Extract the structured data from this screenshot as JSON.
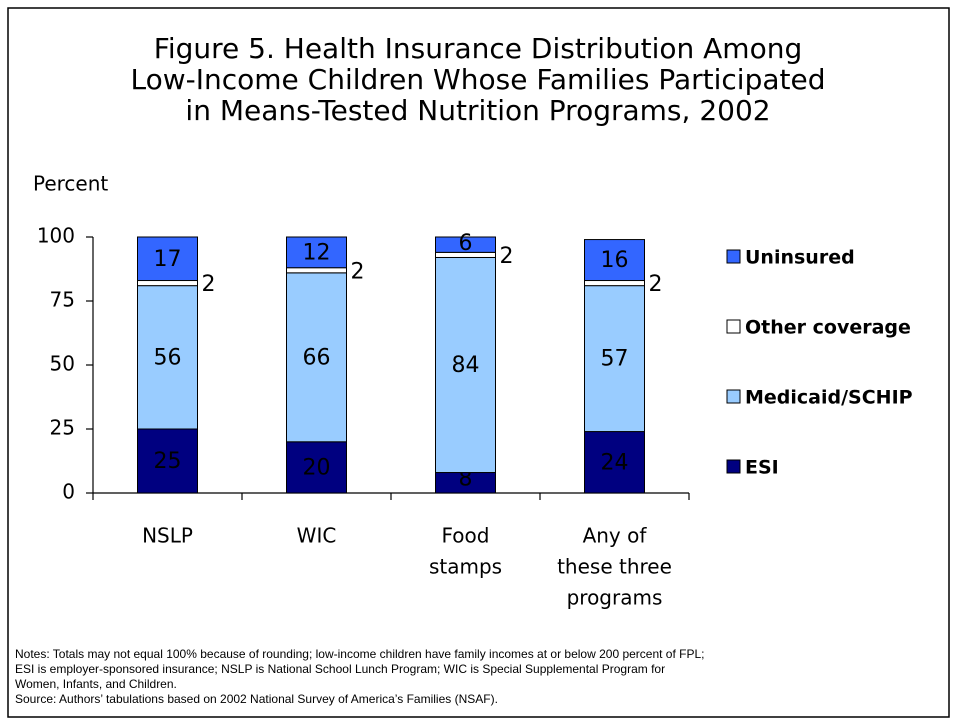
{
  "chart_data": {
    "type": "stacked_bar",
    "title": [
      "Figure 5. Health Insurance Distribution Among",
      "Low-Income Children Whose Families Participated",
      "in Means-Tested Nutrition Programs, 2002"
    ],
    "ylabel": "Percent",
    "categories": [
      [
        "NSLP"
      ],
      [
        "WIC"
      ],
      [
        "Food",
        "stamps"
      ],
      [
        "Any of",
        "these three",
        "programs"
      ]
    ],
    "series": [
      {
        "name": "ESI",
        "color": "#000080",
        "values": [
          25,
          20,
          8,
          24
        ]
      },
      {
        "name": "Medicaid/SCHIP",
        "color": "#99ccff",
        "values": [
          56,
          66,
          84,
          57
        ]
      },
      {
        "name": "Other coverage",
        "color": "#ffffff",
        "values": [
          2,
          2,
          2,
          2
        ]
      },
      {
        "name": "Uninsured",
        "color": "#3366ff",
        "values": [
          17,
          12,
          6,
          16
        ]
      }
    ],
    "ylim": [
      0,
      100
    ],
    "yticks": [
      0,
      25,
      50,
      75,
      100
    ],
    "legend": "right",
    "notes": [
      "Notes: Totals may not equal 100% because of rounding; low-income children have family incomes at or below 200 percent of FPL;",
      "ESI is employer-sponsored insurance; NSLP is National School Lunch Program; WIC is Special Supplemental Program for",
      "Women, Infants, and Children.",
      "Source: Authors’ tabulations based on 2002 National Survey of America’s Families (NSAF)."
    ]
  }
}
